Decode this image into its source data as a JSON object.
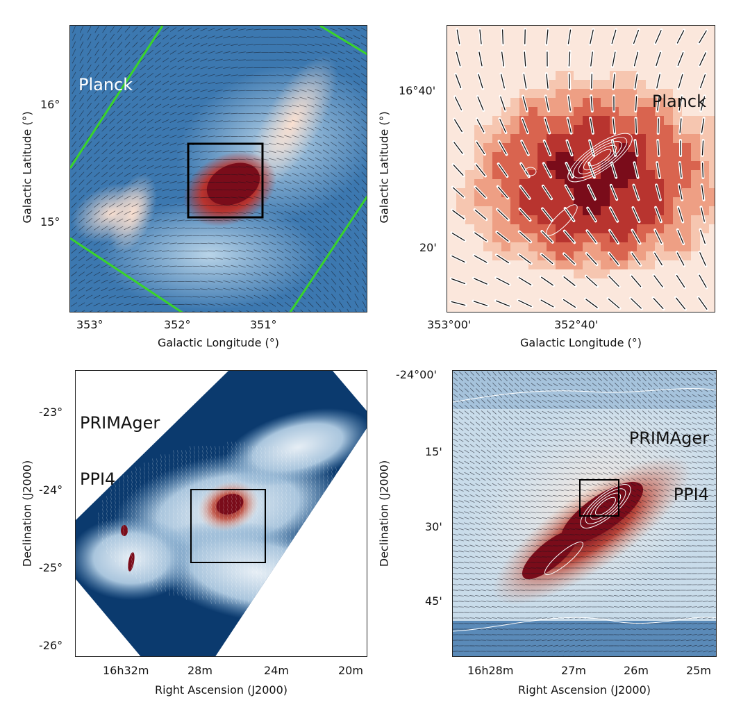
{
  "panels": [
    {
      "id": "top-left",
      "labels": [
        "Planck"
      ],
      "label_color": "#ffffff",
      "x_ticks": [
        "353°",
        "352°",
        "351°"
      ],
      "y_ticks": [
        "16°",
        "15°"
      ],
      "xlabel": "Galactic Longitude (°)",
      "ylabel": "Galactic Latitude (°)",
      "colors": {
        "background": "#3c78b0",
        "peak": "#7a0c1a",
        "footprint": "#3ad42a"
      },
      "has_box": true,
      "has_footprint": true
    },
    {
      "id": "top-right",
      "labels": [
        "Planck"
      ],
      "label_color": "#111111",
      "x_ticks": [
        "353°00'",
        "352°40'"
      ],
      "y_ticks": [
        "16°40'",
        "20'"
      ],
      "xlabel": "Galactic Longitude (°)",
      "ylabel": "Galactic Latitude (°)",
      "colors": {
        "background": "#f2b7a0",
        "peak": "#7a0c1a"
      },
      "has_box": false,
      "has_footprint": false
    },
    {
      "id": "bottom-left",
      "labels": [
        "PRIMAger",
        "PPI4"
      ],
      "label_color": "#111111",
      "x_ticks": [
        "16h32m",
        "28m",
        "24m",
        "20m"
      ],
      "y_ticks": [
        "-23°",
        "-24°",
        "-25°",
        "-26°"
      ],
      "xlabel": "Right Ascension (J2000)",
      "ylabel": "Declination (J2000)",
      "colors": {
        "background": "#0b3a6e",
        "peak": "#7a0c1a"
      },
      "has_box": true,
      "has_footprint": false
    },
    {
      "id": "bottom-right",
      "labels": [
        "PRIMAger",
        "PPI4"
      ],
      "label_color": "#111111",
      "x_ticks": [
        "16h28m",
        "27m",
        "26m",
        "25m"
      ],
      "y_ticks": [
        "-24°00'",
        "15'",
        "30'",
        "45'"
      ],
      "xlabel": "Right Ascension (J2000)",
      "ylabel": "Declination (J2000)",
      "colors": {
        "background": "#c9dcea",
        "peak": "#7a0c1a"
      },
      "has_box": true,
      "has_footprint": false
    }
  ]
}
